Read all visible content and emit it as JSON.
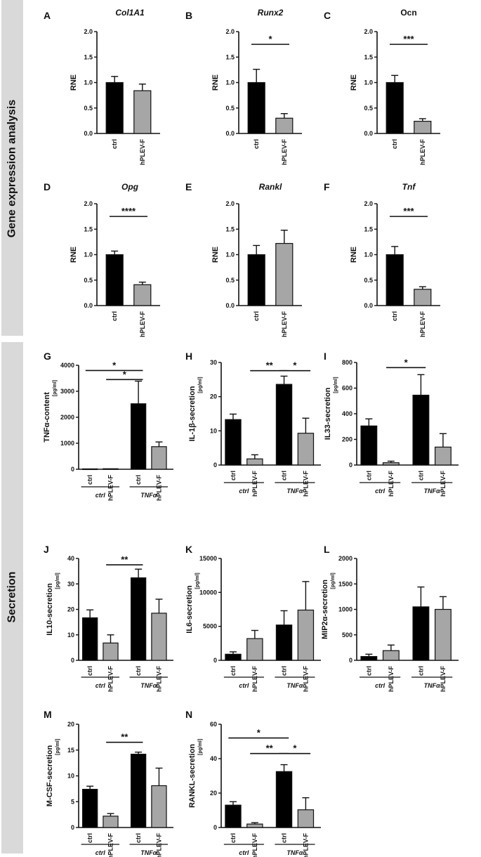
{
  "section_labels": {
    "gene_expression": "Gene expression analysis",
    "secretion": "Secretion"
  },
  "colors": {
    "ctrl": "#000000",
    "hplev": "#a6a6a6"
  },
  "chart_data": [
    {
      "id": "A",
      "title": "Col1A1",
      "title_italic": true,
      "type": "bar",
      "ylabel": "RNE",
      "unit": "",
      "ylim": [
        0,
        2
      ],
      "yticks": [
        0,
        0.5,
        1,
        1.5,
        2
      ],
      "ytick_labels": [
        "0.0",
        "0.5",
        "1.0",
        "1.5",
        "2.0"
      ],
      "categories": [
        "ctrl",
        "hPLEV-F"
      ],
      "values": [
        1.0,
        0.84
      ],
      "errors": [
        0.12,
        0.13
      ],
      "groups": [],
      "sig": []
    },
    {
      "id": "B",
      "title": "Runx2",
      "title_italic": true,
      "type": "bar",
      "ylabel": "RNE",
      "unit": "",
      "ylim": [
        0,
        2
      ],
      "yticks": [
        0,
        0.5,
        1,
        1.5,
        2
      ],
      "ytick_labels": [
        "0.0",
        "0.5",
        "1.0",
        "1.5",
        "2.0"
      ],
      "categories": [
        "ctrl",
        "hPLEV-F"
      ],
      "values": [
        1.0,
        0.3
      ],
      "errors": [
        0.26,
        0.09
      ],
      "groups": [],
      "sig": [
        {
          "from": 0,
          "to": 1,
          "y": 1.75,
          "label": "*"
        }
      ]
    },
    {
      "id": "C",
      "title": "Ocn",
      "title_italic": false,
      "type": "bar",
      "ylabel": "RNE",
      "unit": "",
      "ylim": [
        0,
        2
      ],
      "yticks": [
        0,
        0.5,
        1,
        1.5,
        2
      ],
      "ytick_labels": [
        "0.0",
        "0.5",
        "1.0",
        "1.5",
        "2.0"
      ],
      "categories": [
        "ctrl",
        "hPLEV-F"
      ],
      "values": [
        1.0,
        0.24
      ],
      "errors": [
        0.14,
        0.05
      ],
      "groups": [],
      "sig": [
        {
          "from": 0,
          "to": 1,
          "y": 1.75,
          "label": "***"
        }
      ]
    },
    {
      "id": "D",
      "title": "Opg",
      "title_italic": true,
      "type": "bar",
      "ylabel": "RNE",
      "unit": "",
      "ylim": [
        0,
        2
      ],
      "yticks": [
        0,
        0.5,
        1,
        1.5,
        2
      ],
      "ytick_labels": [
        "0.0",
        "0.5",
        "1.0",
        "1.5",
        "2.0"
      ],
      "categories": [
        "ctrl",
        "hPLEV-F"
      ],
      "values": [
        1.0,
        0.41
      ],
      "errors": [
        0.07,
        0.05
      ],
      "groups": [],
      "sig": [
        {
          "from": 0,
          "to": 1,
          "y": 1.75,
          "label": "****"
        }
      ]
    },
    {
      "id": "E",
      "title": "Rankl",
      "title_italic": true,
      "type": "bar",
      "ylabel": "RNE",
      "unit": "",
      "ylim": [
        0,
        2
      ],
      "yticks": [
        0,
        0.5,
        1,
        1.5,
        2
      ],
      "ytick_labels": [
        "0.0",
        "0.5",
        "1.0",
        "1.5",
        "2.0"
      ],
      "categories": [
        "ctrl",
        "hPLEV-F"
      ],
      "values": [
        1.0,
        1.22
      ],
      "errors": [
        0.18,
        0.26
      ],
      "groups": [],
      "sig": []
    },
    {
      "id": "F",
      "title": "Tnf",
      "title_italic": true,
      "type": "bar",
      "ylabel": "RNE",
      "unit": "",
      "ylim": [
        0,
        2
      ],
      "yticks": [
        0,
        0.5,
        1,
        1.5,
        2
      ],
      "ytick_labels": [
        "0.0",
        "0.5",
        "1.0",
        "1.5",
        "2.0"
      ],
      "categories": [
        "ctrl",
        "hPLEV-F"
      ],
      "values": [
        1.0,
        0.32
      ],
      "errors": [
        0.16,
        0.05
      ],
      "groups": [],
      "sig": [
        {
          "from": 0,
          "to": 1,
          "y": 1.75,
          "label": "***"
        }
      ]
    },
    {
      "id": "G",
      "title": "",
      "title_italic": false,
      "type": "bar",
      "ylabel": "TNFα-content",
      "unit": "[pg/ml]",
      "ylim": [
        0,
        4000
      ],
      "yticks": [
        0,
        1000,
        2000,
        3000,
        4000
      ],
      "ytick_labels": [
        "0",
        "1000",
        "2000",
        "3000",
        "4000"
      ],
      "categories": [
        "ctrl",
        "hPLEV-F",
        "ctrl",
        "hPLEV-F"
      ],
      "values": [
        15,
        20,
        2520,
        870
      ],
      "errors": [
        0,
        0,
        870,
        180
      ],
      "groups": [
        "ctrl",
        "TNFα"
      ],
      "sig": [
        {
          "from": 0,
          "to": 2,
          "y": 3800,
          "label": "*"
        },
        {
          "from": 1,
          "to": 2,
          "y": 3450,
          "label": "*"
        }
      ]
    },
    {
      "id": "H",
      "title": "",
      "title_italic": false,
      "type": "bar",
      "ylabel": "IL-1β-secretion",
      "unit": "[pg/ml]",
      "ylim": [
        0,
        30
      ],
      "yticks": [
        0,
        10,
        20,
        30
      ],
      "ytick_labels": [
        "0",
        "10",
        "20",
        "30"
      ],
      "categories": [
        "ctrl",
        "hPLEV-F",
        "ctrl",
        "hPLEV-F"
      ],
      "values": [
        13.3,
        1.8,
        23.6,
        9.3
      ],
      "errors": [
        1.6,
        1.2,
        2.4,
        4.4
      ],
      "groups": [
        "ctrl",
        "TNFα"
      ],
      "sig": [
        {
          "from": 1,
          "to": 2,
          "y": 27.6,
          "label": "**"
        },
        {
          "from": 2,
          "to": 3,
          "y": 27.6,
          "label": "*"
        }
      ]
    },
    {
      "id": "I",
      "title": "",
      "title_italic": false,
      "type": "bar",
      "ylabel": "IL33-secretion",
      "unit": "[pg/ml]",
      "ylim": [
        0,
        800
      ],
      "yticks": [
        0,
        200,
        400,
        600,
        800
      ],
      "ytick_labels": [
        "0",
        "200",
        "400",
        "600",
        "800"
      ],
      "categories": [
        "ctrl",
        "hPLEV-F",
        "ctrl",
        "hPLEV-F"
      ],
      "values": [
        305,
        18,
        545,
        140
      ],
      "errors": [
        55,
        12,
        160,
        105
      ],
      "groups": [
        "ctrl",
        "TNFα"
      ],
      "sig": [
        {
          "from": 1,
          "to": 2,
          "y": 760,
          "label": "*"
        }
      ]
    },
    {
      "id": "J",
      "title": "",
      "title_italic": false,
      "type": "bar",
      "ylabel": "IL10-secretion",
      "unit": "[pg/ml]",
      "ylim": [
        0,
        40
      ],
      "yticks": [
        0,
        10,
        20,
        30,
        40
      ],
      "ytick_labels": [
        "0",
        "10",
        "20",
        "30",
        "40"
      ],
      "categories": [
        "ctrl",
        "hPLEV-F",
        "ctrl",
        "hPLEV-F"
      ],
      "values": [
        16.7,
        6.8,
        32.4,
        18.5
      ],
      "errors": [
        3.1,
        3.2,
        3.4,
        5.5
      ],
      "groups": [
        "ctrl",
        "TNFα"
      ],
      "sig": [
        {
          "from": 1,
          "to": 2,
          "y": 37.5,
          "label": "**"
        }
      ]
    },
    {
      "id": "K",
      "title": "",
      "title_italic": false,
      "type": "bar",
      "ylabel": "IL6-secretion",
      "unit": "[pg/ml]",
      "ylim": [
        0,
        15000
      ],
      "yticks": [
        0,
        5000,
        10000,
        15000
      ],
      "ytick_labels": [
        "0",
        "5000",
        "10000",
        "15000"
      ],
      "categories": [
        "ctrl",
        "hPLEV-F",
        "ctrl",
        "hPLEV-F"
      ],
      "values": [
        900,
        3200,
        5200,
        7400
      ],
      "errors": [
        350,
        1200,
        2100,
        4200
      ],
      "groups": [
        "ctrl",
        "TNFα"
      ],
      "sig": []
    },
    {
      "id": "L",
      "title": "",
      "title_italic": false,
      "type": "bar",
      "ylabel": "MIP2α-secretion",
      "unit": "[pg/ml]",
      "ylim": [
        0,
        2000
      ],
      "yticks": [
        0,
        500,
        1000,
        1500,
        2000
      ],
      "ytick_labels": [
        "0",
        "500",
        "1000",
        "1500",
        "2000"
      ],
      "categories": [
        "ctrl",
        "hPLEV-F",
        "ctrl",
        "hPLEV-F"
      ],
      "values": [
        75,
        190,
        1050,
        1000
      ],
      "errors": [
        45,
        110,
        390,
        250
      ],
      "groups": [
        "ctrl",
        "TNFα"
      ],
      "sig": []
    },
    {
      "id": "M",
      "title": "",
      "title_italic": false,
      "type": "bar",
      "ylabel": "M-CSF-secretion",
      "unit": "[pg/ml]",
      "ylim": [
        0,
        20
      ],
      "yticks": [
        0,
        5,
        10,
        15,
        20
      ],
      "ytick_labels": [
        "0",
        "5",
        "10",
        "15",
        "20"
      ],
      "categories": [
        "ctrl",
        "hPLEV-F",
        "ctrl",
        "hPLEV-F"
      ],
      "values": [
        7.4,
        2.2,
        14.2,
        8.1
      ],
      "errors": [
        0.6,
        0.5,
        0.4,
        3.4
      ],
      "groups": [
        "ctrl",
        "TNFα"
      ],
      "sig": [
        {
          "from": 1,
          "to": 2,
          "y": 16.5,
          "label": "**"
        }
      ]
    },
    {
      "id": "N",
      "title": "",
      "title_italic": false,
      "type": "bar",
      "ylabel": "RANKL-secretion",
      "unit": "[pg/ml]",
      "ylim": [
        0,
        60
      ],
      "yticks": [
        0,
        20,
        40,
        60
      ],
      "ytick_labels": [
        "0",
        "20",
        "40",
        "60"
      ],
      "categories": [
        "ctrl",
        "hPLEV-F",
        "ctrl",
        "hPLEV-F"
      ],
      "values": [
        13,
        2,
        32.5,
        10.3
      ],
      "errors": [
        2,
        0.8,
        4,
        7
      ],
      "groups": [
        "ctrl",
        "TNFα"
      ],
      "sig": [
        {
          "from": 0,
          "to": 2,
          "y": 52,
          "label": "*"
        },
        {
          "from": 1,
          "to": 2,
          "y": 43,
          "label": "**"
        },
        {
          "from": 2,
          "to": 3,
          "y": 43,
          "label": "*"
        }
      ]
    }
  ]
}
